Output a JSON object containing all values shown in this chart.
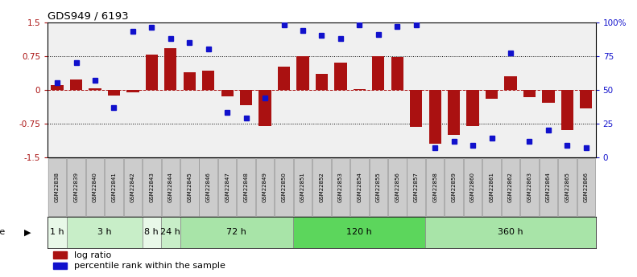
{
  "title": "GDS949 / 6193",
  "samples": [
    "GSM22838",
    "GSM22839",
    "GSM22840",
    "GSM22841",
    "GSM22842",
    "GSM22843",
    "GSM22844",
    "GSM22845",
    "GSM22846",
    "GSM22847",
    "GSM22848",
    "GSM22849",
    "GSM22850",
    "GSM22851",
    "GSM22852",
    "GSM22853",
    "GSM22854",
    "GSM22855",
    "GSM22856",
    "GSM22857",
    "GSM22858",
    "GSM22859",
    "GSM22860",
    "GSM22861",
    "GSM22862",
    "GSM22863",
    "GSM22864",
    "GSM22865",
    "GSM22866"
  ],
  "log_ratio": [
    0.1,
    0.22,
    0.04,
    -0.13,
    -0.06,
    0.78,
    0.92,
    0.38,
    0.42,
    -0.15,
    -0.35,
    -0.8,
    0.52,
    0.75,
    0.36,
    0.6,
    0.01,
    0.75,
    0.72,
    -0.82,
    -1.2,
    -1.0,
    -0.8,
    -0.2,
    0.3,
    -0.16,
    -0.28,
    -0.9,
    -0.42
  ],
  "percentile": [
    55,
    70,
    57,
    37,
    93,
    96,
    88,
    85,
    80,
    33,
    29,
    44,
    98,
    94,
    90,
    88,
    98,
    91,
    97,
    98,
    7,
    12,
    9,
    14,
    77,
    12,
    20,
    9,
    7
  ],
  "time_groups": [
    {
      "label": "1 h",
      "start": 0,
      "end": 1
    },
    {
      "label": "3 h",
      "start": 1,
      "end": 5
    },
    {
      "label": "8 h",
      "start": 5,
      "end": 6
    },
    {
      "label": "24 h",
      "start": 6,
      "end": 7
    },
    {
      "label": "72 h",
      "start": 7,
      "end": 13
    },
    {
      "label": "120 h",
      "start": 13,
      "end": 20
    },
    {
      "label": "360 h",
      "start": 20,
      "end": 29
    }
  ],
  "time_colors": [
    "#e8f8e8",
    "#c8eec8",
    "#e8f8e8",
    "#c8eec8",
    "#a8e4a8",
    "#5cd65c",
    "#a8e4a8"
  ],
  "bar_color": "#aa1111",
  "dot_color": "#1111cc",
  "plot_bg": "#f0f0f0",
  "label_box_color": "#cccccc",
  "ylim_left": [
    -1.5,
    1.5
  ],
  "yticks_left": [
    -1.5,
    -0.75,
    0.0,
    0.75,
    1.5
  ],
  "ytick_labels_left": [
    "-1.5",
    "-0.75",
    "0",
    "0.75",
    "1.5"
  ],
  "ytick_labels_right": [
    "0",
    "25",
    "50",
    "75",
    "100%"
  ]
}
